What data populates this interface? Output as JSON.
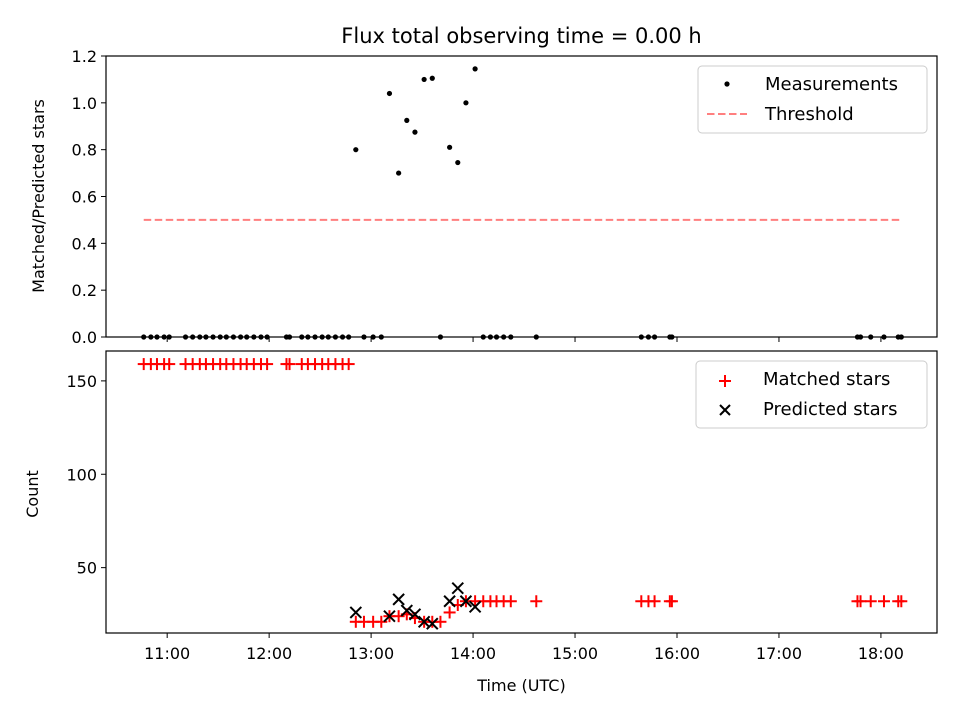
{
  "chart_data": [
    {
      "type": "scatter",
      "title": "Flux total observing time = 0.00 h",
      "ylabel": "Matched/Predicted stars",
      "xlabel": "",
      "xlim": [
        10.4,
        18.55
      ],
      "ylim": [
        0,
        1.2
      ],
      "yticks": [
        0.0,
        0.2,
        0.4,
        0.6,
        0.8,
        1.0,
        1.2
      ],
      "ytick_labels": [
        "0.0",
        "0.2",
        "0.4",
        "0.6",
        "0.8",
        "1.0",
        "1.2"
      ],
      "legend_position": "top-right",
      "legend": [
        "Measurements",
        "Threshold"
      ],
      "colors": {
        "measurements": "#000000",
        "threshold": "#ff7f7f"
      },
      "threshold": {
        "value": 0.5,
        "x": [
          10.77,
          18.2
        ]
      },
      "measurements": {
        "x": [
          10.77,
          10.84,
          10.9,
          10.97,
          11.02,
          11.18,
          11.25,
          11.32,
          11.38,
          11.45,
          11.52,
          11.58,
          11.65,
          11.72,
          11.78,
          11.85,
          11.92,
          11.98,
          12.17,
          12.2,
          12.32,
          12.38,
          12.45,
          12.52,
          12.58,
          12.65,
          12.72,
          12.78,
          12.85,
          12.93,
          13.02,
          13.1,
          13.18,
          13.27,
          13.35,
          13.43,
          13.52,
          13.6,
          13.68,
          13.77,
          13.85,
          13.93,
          14.02,
          14.1,
          14.17,
          14.23,
          14.3,
          14.37,
          14.62,
          15.65,
          15.72,
          15.78,
          15.93,
          15.95,
          17.77,
          17.8,
          17.9,
          18.03,
          18.17,
          18.2
        ],
        "y": [
          0,
          0,
          0,
          0,
          0,
          0,
          0,
          0,
          0,
          0,
          0,
          0,
          0,
          0,
          0,
          0,
          0,
          0,
          0,
          0,
          0,
          0,
          0,
          0,
          0,
          0,
          0,
          0,
          0.8,
          0,
          0,
          0,
          1.04,
          0.7,
          0.925,
          0.875,
          1.1,
          1.105,
          0,
          0.81,
          0.745,
          1.0,
          1.145,
          0,
          0,
          0,
          0,
          0,
          0,
          0,
          0,
          0,
          0,
          0,
          0,
          0,
          0,
          0,
          0,
          0
        ]
      }
    },
    {
      "type": "scatter",
      "title": "",
      "ylabel": "Count",
      "xlabel": "Time (UTC)",
      "xlim": [
        10.4,
        18.55
      ],
      "ylim": [
        15,
        166
      ],
      "yticks": [
        50,
        100,
        150
      ],
      "ytick_labels": [
        "50",
        "100",
        "150"
      ],
      "xticks": [
        11,
        12,
        13,
        14,
        15,
        16,
        17,
        18
      ],
      "xtick_labels": [
        "11:00",
        "12:00",
        "13:00",
        "14:00",
        "15:00",
        "16:00",
        "17:00",
        "18:00"
      ],
      "legend_position": "top-right",
      "legend": [
        "Matched stars",
        "Predicted stars"
      ],
      "colors": {
        "matched": "#ff0000",
        "predicted": "#000000"
      },
      "matched": {
        "x": [
          10.77,
          10.84,
          10.9,
          10.97,
          11.02,
          11.18,
          11.25,
          11.32,
          11.38,
          11.45,
          11.52,
          11.58,
          11.65,
          11.72,
          11.78,
          11.85,
          11.92,
          11.98,
          12.17,
          12.2,
          12.32,
          12.38,
          12.45,
          12.52,
          12.58,
          12.65,
          12.72,
          12.78,
          12.85,
          12.93,
          13.02,
          13.1,
          13.18,
          13.27,
          13.35,
          13.43,
          13.52,
          13.6,
          13.68,
          13.77,
          13.85,
          13.93,
          14.02,
          14.1,
          14.17,
          14.23,
          14.3,
          14.37,
          14.62,
          15.65,
          15.72,
          15.78,
          15.93,
          15.95,
          17.77,
          17.8,
          17.9,
          18.03,
          18.17,
          18.2
        ],
        "y": [
          159,
          159,
          159,
          159,
          159,
          159,
          159,
          159,
          159,
          159,
          159,
          159,
          159,
          159,
          159,
          159,
          159,
          159,
          159,
          159,
          159,
          159,
          159,
          159,
          159,
          159,
          159,
          159,
          21,
          21,
          21,
          21,
          24,
          24,
          25,
          23,
          21,
          21,
          21,
          26,
          30,
          32,
          32,
          32,
          32,
          32,
          32,
          32,
          32,
          32,
          32,
          32,
          32,
          32,
          32,
          32,
          32,
          32,
          32,
          32
        ]
      },
      "predicted": {
        "x": [
          12.85,
          13.18,
          13.27,
          13.35,
          13.43,
          13.52,
          13.6,
          13.77,
          13.85,
          13.93,
          14.02
        ],
        "y": [
          26,
          24,
          33,
          27,
          25,
          21,
          20,
          32,
          39,
          32,
          29
        ]
      }
    }
  ]
}
